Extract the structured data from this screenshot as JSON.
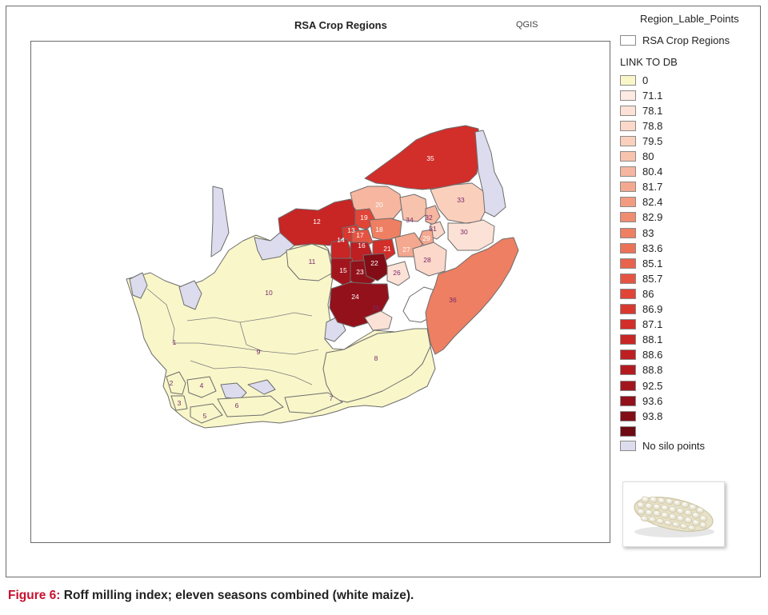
{
  "map": {
    "title": "RSA Crop Regions",
    "software_label": "QGIS",
    "region_numbers": [
      "1",
      "2",
      "3",
      "4",
      "5",
      "6",
      "7",
      "8",
      "9",
      "10",
      "11",
      "12",
      "13",
      "14",
      "15",
      "16",
      "17",
      "18",
      "19",
      "20",
      "21",
      "22",
      "23",
      "24",
      "25",
      "26",
      "27",
      "28",
      "29",
      "30",
      "31",
      "32",
      "33",
      "34",
      "35",
      "36"
    ]
  },
  "legend": {
    "point_layer_title": "Region_Lable_Points",
    "boundary_layer_label": "RSA Crop Regions",
    "class_section_title": "LINK TO DB",
    "classes": [
      {
        "label": "0",
        "color": "#f9f6c9"
      },
      {
        "label": "71.1",
        "color": "#fdeae2"
      },
      {
        "label": "78.1",
        "color": "#fce2d6"
      },
      {
        "label": "78.8",
        "color": "#fbd8c9"
      },
      {
        "label": "79.5",
        "color": "#fad0bd"
      },
      {
        "label": "80",
        "color": "#f8c3ad"
      },
      {
        "label": "80.4",
        "color": "#f6b6a0"
      },
      {
        "label": "81.7",
        "color": "#f4a88f"
      },
      {
        "label": "82.4",
        "color": "#f29b80"
      },
      {
        "label": "82.9",
        "color": "#f08c70"
      },
      {
        "label": "83",
        "color": "#ee7f62"
      },
      {
        "label": "83.6",
        "color": "#eb7157"
      },
      {
        "label": "85.1",
        "color": "#e8624c"
      },
      {
        "label": "85.7",
        "color": "#e55442"
      },
      {
        "label": "86",
        "color": "#e04538"
      },
      {
        "label": "86.9",
        "color": "#d9382f"
      },
      {
        "label": "87.1",
        "color": "#d22e2a"
      },
      {
        "label": "88.1",
        "color": "#c82525"
      },
      {
        "label": "88.6",
        "color": "#bd1f22"
      },
      {
        "label": "88.8",
        "color": "#b21a20"
      },
      {
        "label": "92.5",
        "color": "#a3151d"
      },
      {
        "label": "93.6",
        "color": "#93111a"
      },
      {
        "label": "93.8",
        "color": "#820d16"
      },
      {
        "label": "",
        "color": "#6e0a12"
      }
    ],
    "no_data": {
      "label": "No silo points",
      "color": "#dcdcee"
    }
  },
  "caption": {
    "label": "Figure 6:",
    "text": "Roff milling index; eleven seasons combined (white maize)."
  }
}
